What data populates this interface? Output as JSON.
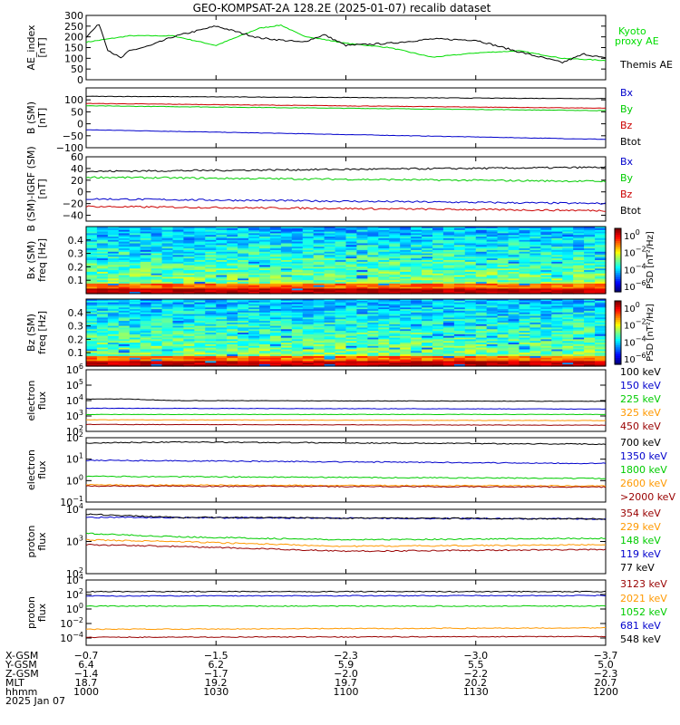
{
  "title": "GEO-KOMPSAT-2A 128.2E (2025-01-07) recalib dataset",
  "chart_data": [
    {
      "type": "line",
      "ylabel": "AE_index [nT]",
      "ylim": [
        0,
        300
      ],
      "yticks": [
        0,
        50,
        100,
        150,
        200,
        250,
        300
      ],
      "legend_placement": "right",
      "series": [
        {
          "name": "Kyoto proxy AE",
          "color": "#00dd00",
          "label_lines": [
            "Kyoto",
            "proxy AE"
          ],
          "x": [
            0,
            10,
            20,
            30,
            40,
            45,
            50,
            60,
            70,
            80,
            90,
            100,
            110,
            120
          ],
          "values": [
            175,
            205,
            205,
            160,
            240,
            255,
            205,
            170,
            150,
            105,
            125,
            135,
            100,
            90
          ]
        },
        {
          "name": "Themis AE",
          "color": "#000000",
          "label_lines": [
            "Themis AE"
          ],
          "x": [
            0,
            3,
            5,
            8,
            10,
            15,
            20,
            30,
            40,
            50,
            55,
            60,
            70,
            80,
            90,
            100,
            110,
            115,
            120
          ],
          "values": [
            200,
            260,
            140,
            100,
            135,
            160,
            200,
            250,
            195,
            175,
            210,
            160,
            170,
            190,
            185,
            130,
            80,
            120,
            100
          ]
        }
      ]
    },
    {
      "type": "line",
      "ylabel": "B (SM) [nT]",
      "ylim": [
        -100,
        150
      ],
      "yticks": [
        -100,
        -50,
        0,
        50,
        100
      ],
      "legend_placement": "right",
      "series": [
        {
          "name": "Bx",
          "color": "#0000cc",
          "x": [
            0,
            120
          ],
          "values": [
            -25,
            -65
          ]
        },
        {
          "name": "By",
          "color": "#00cc00",
          "x": [
            0,
            120
          ],
          "values": [
            75,
            55
          ]
        },
        {
          "name": "Bz",
          "color": "#cc0000",
          "x": [
            0,
            120
          ],
          "values": [
            85,
            65
          ]
        },
        {
          "name": "Btot",
          "color": "#000000",
          "x": [
            0,
            120
          ],
          "values": [
            115,
            105
          ]
        }
      ]
    },
    {
      "type": "line",
      "ylabel": "B (SM)-IGRF (SM) [nT]",
      "ylim": [
        -50,
        60
      ],
      "yticks": [
        -40,
        -20,
        0,
        20,
        40,
        60
      ],
      "legend_placement": "right",
      "series": [
        {
          "name": "Bx",
          "color": "#0000cc",
          "x": [
            0,
            120
          ],
          "values": [
            -12,
            -20
          ]
        },
        {
          "name": "By",
          "color": "#00cc00",
          "x": [
            0,
            120
          ],
          "values": [
            25,
            18
          ]
        },
        {
          "name": "Bz",
          "color": "#cc0000",
          "x": [
            0,
            120
          ],
          "values": [
            -25,
            -32
          ]
        },
        {
          "name": "Btot",
          "color": "#000000",
          "x": [
            0,
            120
          ],
          "values": [
            35,
            42
          ]
        }
      ]
    },
    {
      "type": "heatmap",
      "ylabel": "Bx (SM) freq [Hz]",
      "ylim": [
        0,
        0.5
      ],
      "yticks": [
        0.1,
        0.2,
        0.3,
        0.4
      ],
      "colorbar_label": "PSD [nT²/Hz]",
      "colorbar_ticks": [
        0,
        -2,
        -4,
        -6
      ]
    },
    {
      "type": "heatmap",
      "ylabel": "Bz (SM) freq [Hz]",
      "ylim": [
        0,
        0.5
      ],
      "yticks": [
        0.1,
        0.2,
        0.3,
        0.4
      ],
      "colorbar_label": "PSD [nT²/Hz]",
      "colorbar_ticks": [
        0,
        -2,
        -4,
        -6
      ]
    },
    {
      "type": "line",
      "log": true,
      "ylabel": "electron flux",
      "ylim_exp": [
        2,
        6
      ],
      "yticks_exp": [
        2,
        3,
        4,
        5,
        6
      ],
      "legend_placement": "right",
      "series": [
        {
          "name": "100 keV",
          "color": "#000000",
          "x": [
            0,
            10,
            20,
            120
          ],
          "values": [
            4.1,
            4.1,
            4.0,
            3.95
          ]
        },
        {
          "name": "150 keV",
          "color": "#0000cc",
          "x": [
            0,
            120
          ],
          "values": [
            3.5,
            3.45
          ]
        },
        {
          "name": "225 keV",
          "color": "#00cc00",
          "x": [
            0,
            120
          ],
          "values": [
            3.1,
            3.1
          ]
        },
        {
          "name": "325 keV",
          "color": "#ff9900",
          "x": [
            0,
            120
          ],
          "values": [
            2.75,
            2.7
          ]
        },
        {
          "name": "450 keV",
          "color": "#990000",
          "x": [
            0,
            120
          ],
          "values": [
            2.45,
            2.4
          ]
        }
      ]
    },
    {
      "type": "line",
      "log": true,
      "ylabel": "electron flux",
      "ylim_exp": [
        -1,
        2
      ],
      "yticks_exp": [
        -1,
        0,
        1,
        2
      ],
      "legend_placement": "right",
      "series": [
        {
          "name": "700 keV",
          "color": "#000000",
          "x": [
            0,
            20,
            120
          ],
          "values": [
            1.75,
            1.8,
            1.7
          ]
        },
        {
          "name": "1350 keV",
          "color": "#0000cc",
          "x": [
            0,
            120
          ],
          "values": [
            0.95,
            0.8
          ]
        },
        {
          "name": "1800 keV",
          "color": "#00cc00",
          "x": [
            0,
            120
          ],
          "values": [
            0.2,
            0.1
          ]
        },
        {
          "name": "2600 keV",
          "color": "#ff9900",
          "x": [
            0,
            120
          ],
          "values": [
            -0.2,
            -0.25
          ]
        },
        {
          "name": ">2000 keV",
          "color": "#990000",
          "x": [
            0,
            120
          ],
          "values": [
            -0.25,
            -0.3
          ]
        }
      ]
    },
    {
      "type": "line",
      "log": true,
      "ylabel": "proton flux",
      "ylim_exp": [
        2,
        4
      ],
      "yticks_exp": [
        2,
        3,
        4
      ],
      "legend_placement": "right",
      "series": [
        {
          "name": "354 keV",
          "color": "#990000",
          "x": [
            0,
            20,
            60,
            120
          ],
          "values": [
            2.9,
            2.85,
            2.7,
            2.75
          ]
        },
        {
          "name": "229 keV",
          "color": "#ff9900",
          "x": [
            0,
            20,
            60,
            120
          ],
          "values": [
            3.05,
            3.0,
            2.85,
            2.9
          ]
        },
        {
          "name": "148 keV",
          "color": "#00cc00",
          "x": [
            0,
            20,
            60,
            120
          ],
          "values": [
            3.25,
            3.15,
            3.05,
            3.1
          ]
        },
        {
          "name": "119 keV",
          "color": "#0000cc",
          "x": [
            0,
            120
          ],
          "values": [
            3.75,
            3.7
          ]
        },
        {
          "name": "77 keV",
          "color": "#000000",
          "x": [
            0,
            20,
            120
          ],
          "values": [
            3.85,
            3.75,
            3.7
          ]
        }
      ]
    },
    {
      "type": "line",
      "log": true,
      "ylabel": "proton flux",
      "ylim_exp": [
        -5,
        4
      ],
      "yticks_exp": [
        -4,
        -2,
        0,
        2,
        4
      ],
      "legend_placement": "right",
      "series": [
        {
          "name": "3123 keV",
          "color": "#990000",
          "x": [
            0,
            120
          ],
          "values": [
            -3.9,
            -3.8
          ]
        },
        {
          "name": "2021 keV",
          "color": "#ff9900",
          "x": [
            0,
            120
          ],
          "values": [
            -2.8,
            -2.6
          ]
        },
        {
          "name": "1052 keV",
          "color": "#00cc00",
          "x": [
            0,
            120
          ],
          "values": [
            0.4,
            0.4
          ]
        },
        {
          "name": "681 keV",
          "color": "#0000cc",
          "x": [
            0,
            120
          ],
          "values": [
            1.8,
            1.85
          ]
        },
        {
          "name": "548 keV",
          "color": "#000000",
          "x": [
            0,
            120
          ],
          "values": [
            2.4,
            2.4
          ]
        }
      ]
    }
  ],
  "ephemeris": {
    "labels": [
      "X-GSM",
      "Y-GSM",
      "Z-GSM",
      "MLT",
      "hhmm",
      "2025 Jan 07"
    ],
    "columns": [
      [
        "-0.7",
        "6.4",
        "-1.4",
        "18.7",
        "1000"
      ],
      [
        "-1.5",
        "6.2",
        "-1.7",
        "19.2",
        "1030"
      ],
      [
        "-2.3",
        "5.9",
        "-2.0",
        "19.7",
        "1100"
      ],
      [
        "-3.0",
        "5.5",
        "-2.2",
        "20.2",
        "1130"
      ],
      [
        "-3.7",
        "5.0",
        "-2.3",
        "20.7",
        "1200"
      ]
    ]
  }
}
